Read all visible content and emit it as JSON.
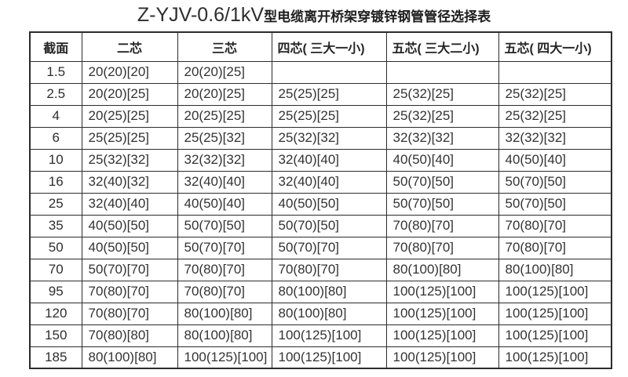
{
  "title": {
    "latin": "Z-YJV-0.6/1kV",
    "chinese": "型电缆离开桥架穿镀锌钢管管径选择表"
  },
  "table": {
    "columns": [
      "截面",
      "二芯",
      "三芯",
      "四芯( 三大一小)",
      "五芯( 三大二小)",
      "五芯( 四大一小)"
    ],
    "rows": [
      [
        "1.5",
        "20(20)[20]",
        "20(20)[25]",
        "",
        "",
        ""
      ],
      [
        "2.5",
        "20(20)[25]",
        "20(20)[25]",
        "25(25)[25]",
        "25(32)[25]",
        "25(32)[25]"
      ],
      [
        "4",
        "20(25)[25]",
        "20(25)[25]",
        "25(25)[25]",
        "25(32)[25]",
        "25(32)[25]"
      ],
      [
        "6",
        "25(25)[25]",
        "25(25)[32]",
        "25(32)[32]",
        "32(32)[32]",
        "32(32)[32]"
      ],
      [
        "10",
        "25(32)[32]",
        "32(32)[32]",
        "32(40)[40]",
        "40(50)[40]",
        "40(50)[40]"
      ],
      [
        "16",
        "32(40)[32]",
        "32(40)[40]",
        "32(40)[40]",
        "50(70)[50]",
        "50(70)[50]"
      ],
      [
        "25",
        "32(40)[40]",
        "40(50)[40]",
        "40(50)[50]",
        "50(70)[50]",
        "50(70)[50]"
      ],
      [
        "35",
        "40(50)[50]",
        "50(70)[50]",
        "50(70)[50]",
        "70(80)[70]",
        "70(80)[70]"
      ],
      [
        "50",
        "40(50)[50]",
        "50(70)[70]",
        "50(70)[70]",
        "70(80)[70]",
        "70(80)[70]"
      ],
      [
        "70",
        "50(70)[70]",
        "70(80)[70]",
        "70(80)[70]",
        "80(100)[80]",
        "80(100)[80]"
      ],
      [
        "95",
        "70(80)[70]",
        "70(80)[70]",
        "80(100)[80]",
        "100(125)[100]",
        "100(125)[100]"
      ],
      [
        "120",
        "70(80)[70]",
        "80(100)[80]",
        "80(100)[80]",
        "100(125)[100]",
        "100(125)[100]"
      ],
      [
        "150",
        "70(80)[80]",
        "80(100)[80]",
        "100(125)[100]",
        "100(125)[100]",
        "100(125)[100]"
      ],
      [
        "185",
        "80(100)[80]",
        "100(125)[100]",
        "100(125)[100]",
        "100(125)[100]",
        "100(125)[100]"
      ]
    ]
  },
  "colors": {
    "background": "#ffffff",
    "line": "#2c2c2c",
    "text": "#333333",
    "title_text": "#1e1e1e"
  }
}
